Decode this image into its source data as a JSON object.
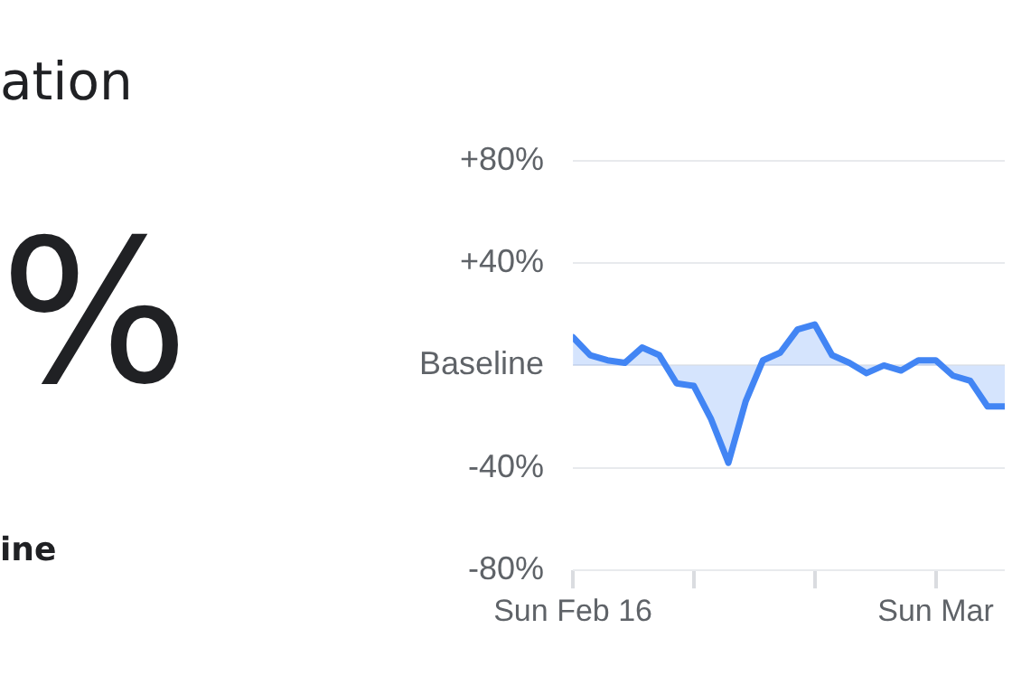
{
  "chart_data": {
    "type": "area",
    "title": "ation",
    "annotations": [
      "%",
      "ine"
    ],
    "x": [
      "--02-16",
      "--02-17",
      "--02-18",
      "--02-19",
      "--02-20",
      "--02-21",
      "--02-22",
      "--02-23",
      "--02-24",
      "--02-25",
      "--02-26",
      "--02-27",
      "--02-28",
      "--02-29",
      "--03-01",
      "--03-02",
      "--03-03",
      "--03-04",
      "--03-05",
      "--03-06",
      "--03-07",
      "--03-08",
      "--03-09",
      "--03-10",
      "--03-11",
      "--03-12"
    ],
    "values": [
      11,
      4,
      2,
      1,
      7,
      4,
      -7,
      -8,
      -21,
      -38,
      -14,
      2,
      5,
      14,
      16,
      4,
      1,
      -3,
      0,
      -2,
      2,
      2,
      -4,
      -6,
      -16,
      -16
    ],
    "color": "#4285f4",
    "xlim": [
      "--02-16",
      "--03-12"
    ],
    "xticks": [
      {
        "value": "--02-16",
        "label": "Sun Feb 16"
      },
      {
        "value": "--02-23",
        "label": null
      },
      {
        "value": "--03-01",
        "label": null
      },
      {
        "value": "--03-08",
        "label": "Sun Mar"
      }
    ],
    "ylim": [
      -80,
      80
    ],
    "yticks": [
      {
        "value": 80,
        "label": "+80%"
      },
      {
        "value": 40,
        "label": "+40%"
      },
      {
        "value": 0,
        "label": "Baseline"
      },
      {
        "value": -40,
        "label": "-40%"
      },
      {
        "value": -80,
        "label": "-80%"
      }
    ],
    "grid": "y"
  }
}
